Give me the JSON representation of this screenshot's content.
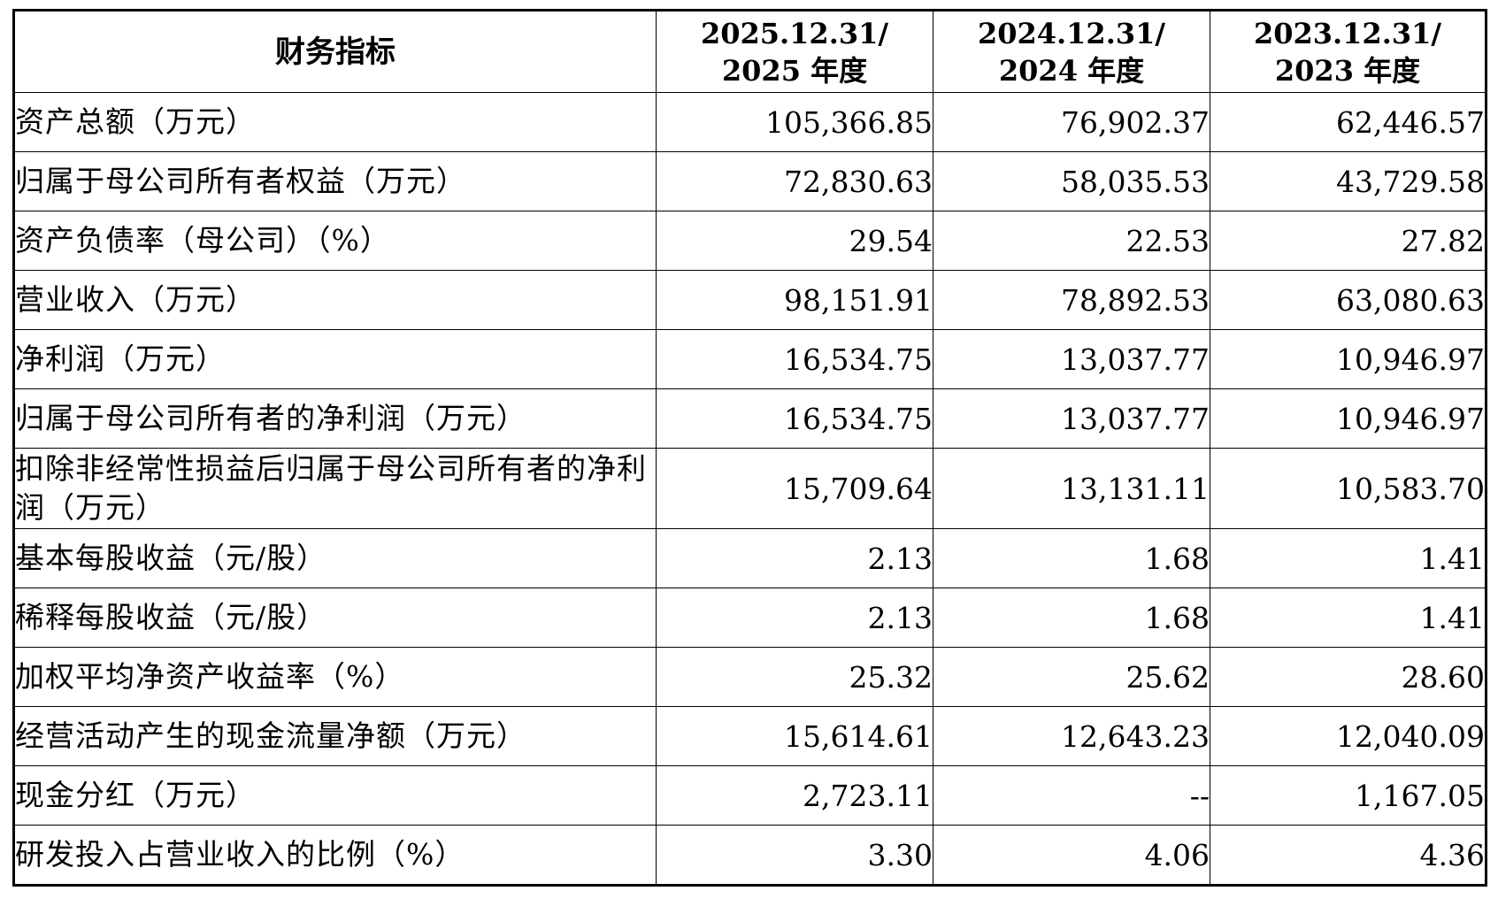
{
  "header": {
    "label": "财务指标",
    "columns": [
      {
        "line1": "2025.12.31/",
        "line2": "2025 年度"
      },
      {
        "line1": "2024.12.31/",
        "line2": "2024 年度"
      },
      {
        "line1": "2023.12.31/",
        "line2": "2023 年度"
      }
    ]
  },
  "rows": [
    {
      "label": "资产总额（万元）",
      "values": [
        "105,366.85",
        "76,902.37",
        "62,446.57"
      ]
    },
    {
      "label": "归属于母公司所有者权益（万元）",
      "values": [
        "72,830.63",
        "58,035.53",
        "43,729.58"
      ]
    },
    {
      "label": "资产负债率（母公司）（%）",
      "values": [
        "29.54",
        "22.53",
        "27.82"
      ]
    },
    {
      "label": "营业收入（万元）",
      "values": [
        "98,151.91",
        "78,892.53",
        "63,080.63"
      ]
    },
    {
      "label": "净利润（万元）",
      "values": [
        "16,534.75",
        "13,037.77",
        "10,946.97"
      ]
    },
    {
      "label": "归属于母公司所有者的净利润（万元）",
      "values": [
        "16,534.75",
        "13,037.77",
        "10,946.97"
      ]
    },
    {
      "label": "扣除非经常性损益后归属于母公司所有者的净利润（万元）",
      "values": [
        "15,709.64",
        "13,131.11",
        "10,583.70"
      ]
    },
    {
      "label": "基本每股收益（元/股）",
      "values": [
        "2.13",
        "1.68",
        "1.41"
      ]
    },
    {
      "label": "稀释每股收益（元/股）",
      "values": [
        "2.13",
        "1.68",
        "1.41"
      ]
    },
    {
      "label": "加权平均净资产收益率（%）",
      "values": [
        "25.32",
        "25.62",
        "28.60"
      ]
    },
    {
      "label": "经营活动产生的现金流量净额（万元）",
      "values": [
        "15,614.61",
        "12,643.23",
        "12,040.09"
      ]
    },
    {
      "label": "现金分红（万元）",
      "values": [
        "2,723.11",
        "--",
        "1,167.05"
      ]
    },
    {
      "label": "研发投入占营业收入的比例（%）",
      "values": [
        "3.30",
        "4.06",
        "4.36"
      ]
    }
  ]
}
